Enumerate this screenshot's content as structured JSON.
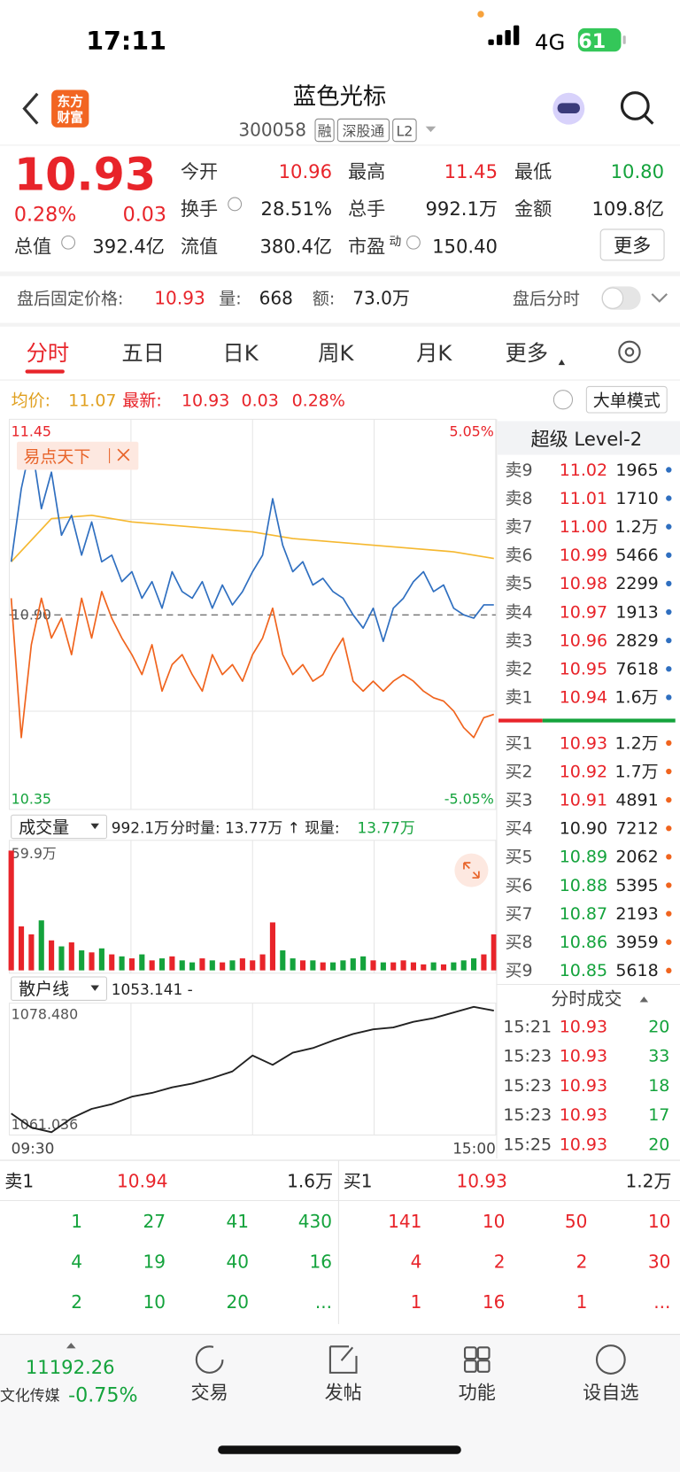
{
  "status_bar": {
    "time": "17:11",
    "network": "4G",
    "battery": "61"
  },
  "header": {
    "logo": [
      "东方",
      "财富"
    ],
    "title": "蓝色光标",
    "code": "300058",
    "tags": [
      "融",
      "深股通",
      "L2"
    ]
  },
  "quote": {
    "price": "10.93",
    "change_pct": "0.28%",
    "change": "0.03",
    "fields": [
      {
        "label": "今开",
        "value": "10.96"
      },
      {
        "label": "最高",
        "value": "11.45"
      },
      {
        "label": "最低",
        "value": "10.80"
      },
      {
        "label": "换手",
        "value": "28.51%"
      },
      {
        "label": "总手",
        "value": "992.1万"
      },
      {
        "label": "金额",
        "value": "109.8亿"
      },
      {
        "label": "总值",
        "value": "392.4亿"
      },
      {
        "label": "流值",
        "value": "380.4亿"
      },
      {
        "label": "市盈",
        "value": "150.40",
        "sup": "动"
      }
    ],
    "more": "更多"
  },
  "after_hours": {
    "label": "盘后固定价格:",
    "price": "10.93",
    "volume_label": "量:",
    "volume": "668",
    "amount_label": "额:",
    "amount": "73.0万",
    "switch_label": "盘后分时"
  },
  "tabs": [
    "分时",
    "五日",
    "日K",
    "周K",
    "月K",
    "更多"
  ],
  "info": {
    "avg_label": "均价:",
    "avg": "11.07",
    "last_label": "最新:",
    "last": "10.93",
    "change": "0.03",
    "change_pct": "0.28%",
    "mode": "大单模式"
  },
  "intraday": {
    "type": "line",
    "ylim": [
      10.35,
      11.45
    ],
    "yticks": [
      10.35,
      {
        "value": 10.9,
        "label": "10.90"
      },
      11.45
    ],
    "pct_labels": [
      "-5.05%",
      "5.05%"
    ],
    "tag": "易点天下",
    "series": [
      {
        "color": "#2f6fc0",
        "values": [
          11.06,
          11.28,
          11.42,
          11.22,
          11.33,
          11.14,
          11.2,
          11.08,
          11.18,
          11.06,
          11.08,
          11.0,
          11.03,
          10.95,
          11.0,
          10.92,
          11.03,
          10.97,
          10.95,
          11.0,
          10.92,
          10.99,
          10.93,
          10.97,
          11.03,
          11.08,
          11.25,
          11.11,
          11.03,
          11.06,
          10.99,
          11.01,
          10.97,
          10.95,
          10.9,
          10.86,
          10.92,
          10.82,
          10.92,
          10.95,
          11.0,
          11.03,
          10.97,
          10.99,
          10.92,
          10.9,
          10.89,
          10.93,
          10.93
        ]
      },
      {
        "color": "#f5b830",
        "values": [
          11.06,
          11.19,
          11.2,
          11.18,
          11.17,
          11.16,
          11.15,
          11.13,
          11.12,
          11.11,
          11.1,
          11.09,
          11.07
        ]
      },
      {
        "color": "#f0641e",
        "values": [
          10.95,
          10.53,
          10.81,
          10.95,
          10.83,
          10.89,
          10.78,
          10.95,
          10.83,
          10.97,
          10.89,
          10.83,
          10.78,
          10.72,
          10.81,
          10.67,
          10.75,
          10.78,
          10.72,
          10.67,
          10.78,
          10.72,
          10.75,
          10.7,
          10.78,
          10.83,
          10.92,
          10.78,
          10.72,
          10.75,
          10.7,
          10.72,
          10.78,
          10.83,
          10.7,
          10.67,
          10.7,
          10.67,
          10.7,
          10.72,
          10.7,
          10.67,
          10.65,
          10.64,
          10.61,
          10.56,
          10.53,
          10.59,
          10.6
        ]
      }
    ]
  },
  "volume": {
    "label": "成交量",
    "total": "992.1万",
    "detail": "分时量: 13.77万 ↑ 现量:",
    "current": "13.77万",
    "ylim": [
      0,
      59.9
    ],
    "yticks": [
      {
        "value": 59.9,
        "label": "59.9万"
      }
    ],
    "values": [
      59.9,
      22,
      18,
      25,
      15,
      12,
      14,
      10,
      9,
      11,
      8,
      7,
      6,
      8,
      5,
      6,
      7,
      5,
      4,
      6,
      5,
      4,
      5,
      6,
      5,
      8,
      24,
      10,
      6,
      5,
      5,
      4,
      4,
      5,
      6,
      7,
      5,
      4,
      4,
      5,
      4,
      3,
      4,
      3,
      4,
      5,
      6,
      8,
      18
    ]
  },
  "retail": {
    "label": "散户线",
    "value": "1053.141 -",
    "ylim": [
      1061.036,
      1078.48
    ],
    "yticks": [
      {
        "value": 1061.036,
        "label": "1061.036"
      },
      {
        "value": 1078.48,
        "label": "1078.480"
      }
    ],
    "color": "#222",
    "values": [
      1062.53,
      1060.29,
      1059.55,
      1061.78,
      1063.27,
      1064.02,
      1065.21,
      1065.81,
      1066.7,
      1067.3,
      1068.19,
      1069.24,
      1071.77,
      1070.28,
      1072.22,
      1072.96,
      1074.16,
      1075.2,
      1075.95,
      1076.24,
      1077.14,
      1077.73,
      1078.63,
      1079.52,
      1078.93
    ]
  },
  "time_axis": [
    "09:30",
    "15:00"
  ],
  "level2": {
    "title": "超级 Level-2",
    "asks": [
      [
        "卖9",
        "11.02",
        "1965"
      ],
      [
        "卖8",
        "11.01",
        "1710"
      ],
      [
        "卖7",
        "11.00",
        "1.2万"
      ],
      [
        "卖6",
        "10.99",
        "5466"
      ],
      [
        "卖5",
        "10.98",
        "2299"
      ],
      [
        "卖4",
        "10.97",
        "1913"
      ],
      [
        "卖3",
        "10.96",
        "2829"
      ],
      [
        "卖2",
        "10.95",
        "7618"
      ],
      [
        "卖1",
        "10.94",
        "1.6万"
      ]
    ],
    "bids": [
      [
        "买1",
        "10.93",
        "1.2万"
      ],
      [
        "买2",
        "10.92",
        "1.7万"
      ],
      [
        "买3",
        "10.91",
        "4891"
      ],
      [
        "买4",
        "10.90",
        "7212"
      ],
      [
        "买5",
        "10.89",
        "2062"
      ],
      [
        "买6",
        "10.88",
        "5395"
      ],
      [
        "买7",
        "10.87",
        "2193"
      ],
      [
        "买8",
        "10.86",
        "3959"
      ],
      [
        "买9",
        "10.85",
        "5618"
      ]
    ]
  },
  "trades": {
    "title": "分时成交",
    "rows": [
      [
        "15:21",
        "10.93",
        "20"
      ],
      [
        "15:23",
        "10.93",
        "33"
      ],
      [
        "15:23",
        "10.93",
        "18"
      ],
      [
        "15:23",
        "10.93",
        "17"
      ],
      [
        "15:25",
        "10.93",
        "20"
      ]
    ]
  },
  "book": {
    "ask": [
      "卖1",
      "10.94",
      "1.6万"
    ],
    "bid": [
      "买1",
      "10.93",
      "1.2万"
    ],
    "ask_rows": [
      [
        "1",
        "27",
        "41",
        "430"
      ],
      [
        "4",
        "19",
        "40",
        "16"
      ],
      [
        "2",
        "10",
        "20",
        "..."
      ]
    ],
    "bid_rows": [
      [
        "141",
        "10",
        "50",
        "10"
      ],
      [
        "4",
        "2",
        "2",
        "30"
      ],
      [
        "1",
        "16",
        "1",
        "..."
      ]
    ]
  },
  "nav": {
    "index": "11192.26",
    "sector": "文化传媒",
    "sector_change": "-0.75%",
    "items": [
      "交易",
      "发帖",
      "功能",
      "设自选"
    ]
  }
}
